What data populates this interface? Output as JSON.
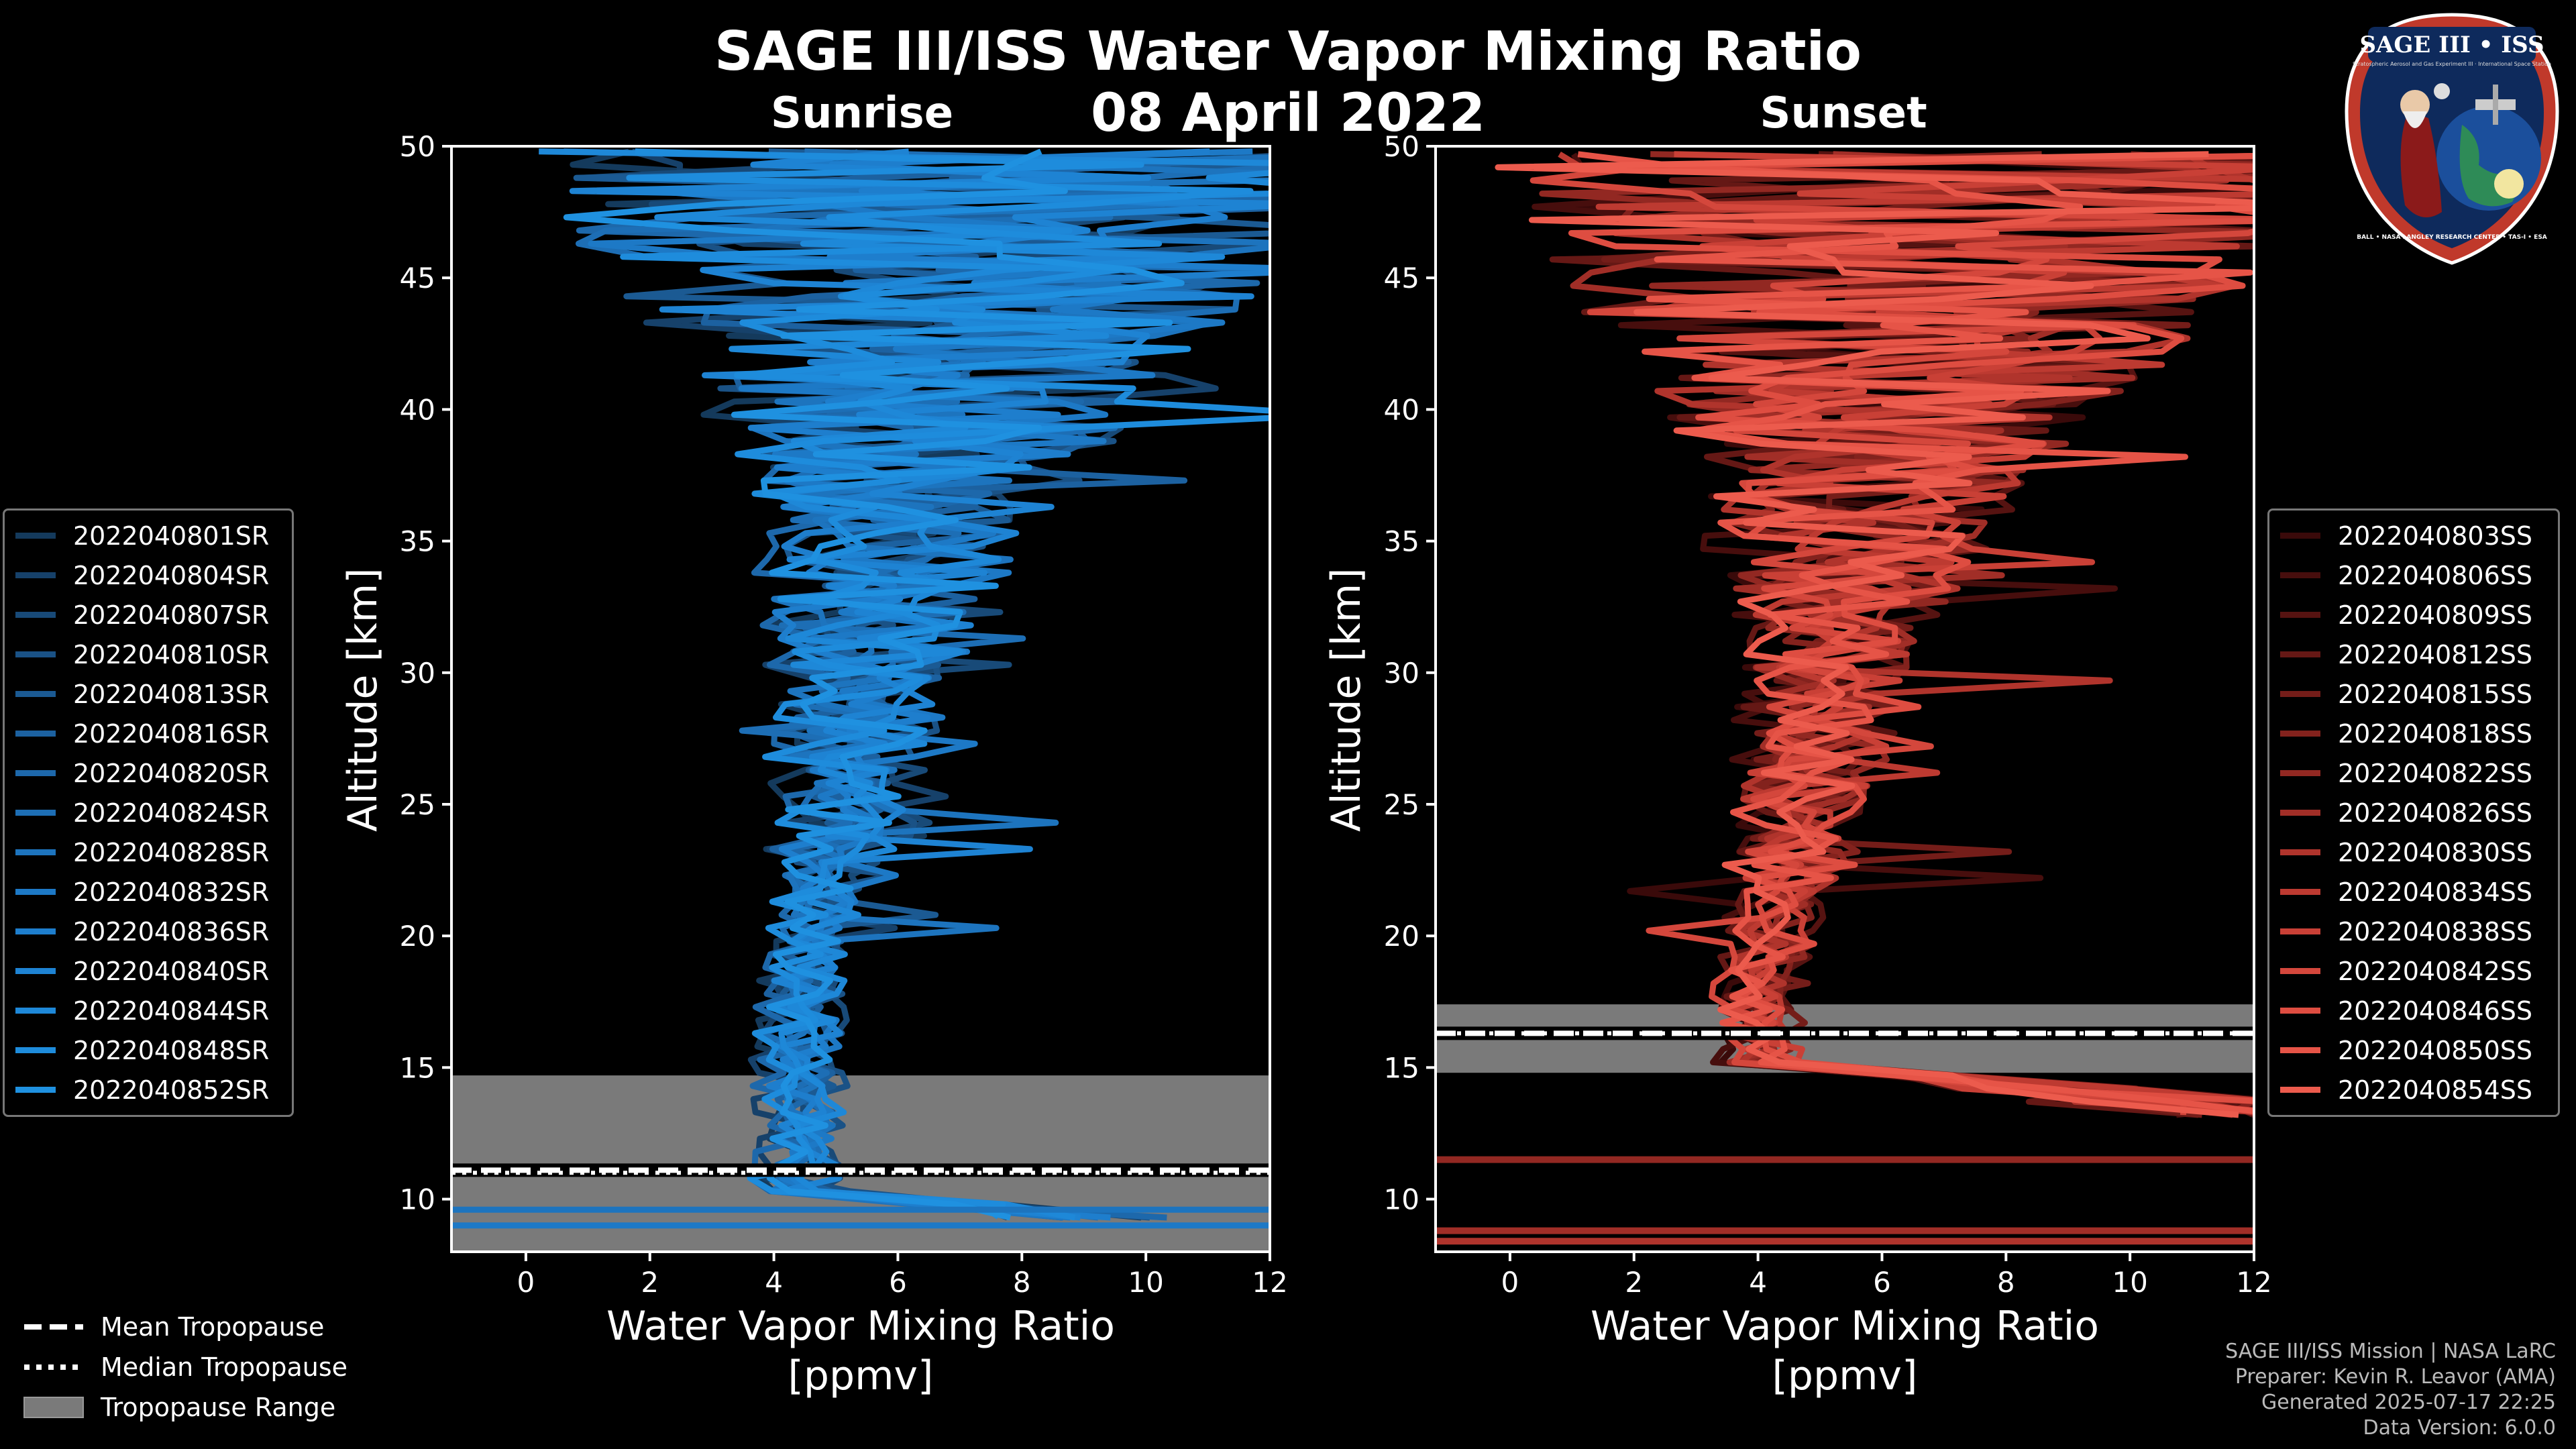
{
  "header": {
    "title": "SAGE III/ISS Water Vapor Mixing Ratio",
    "date": "08 April 2022"
  },
  "logo": {
    "text": "SAGE III • ISS",
    "subtitle": "Stratospheric Aerosol and Gas Experiment III · International Space Station",
    "ring_text": "BALL • NASA LANGLEY RESEARCH CENTER • TAS-I • ESA"
  },
  "colors": {
    "background": "#000000",
    "sunrise_accent": "#1f8fd6",
    "sunset_accent": "#e8574a",
    "tropopause_band": "#7a7a7a"
  },
  "chart_data": [
    {
      "type": "line",
      "panel": "Sunrise",
      "title": "Sunrise",
      "xlabel": "Water Vapor Mixing Ratio\n[ppmv]",
      "ylabel": "Altitude [km]",
      "xlim": [
        -1.2,
        12
      ],
      "ylim": [
        8,
        50
      ],
      "xticks": [
        0,
        2,
        4,
        6,
        8,
        10,
        12
      ],
      "yticks": [
        10,
        15,
        20,
        25,
        30,
        35,
        40,
        45,
        50
      ],
      "tropopause": {
        "mean": 11.1,
        "median": 11.0,
        "range": [
          8.0,
          14.7
        ]
      },
      "series": [
        {
          "name": "2022040801SR",
          "color": "#143a5c"
        },
        {
          "name": "2022040804SR",
          "color": "#16416a"
        },
        {
          "name": "2022040807SR",
          "color": "#184a78"
        },
        {
          "name": "2022040810SR",
          "color": "#1a5286"
        },
        {
          "name": "2022040813SR",
          "color": "#1b5a93"
        },
        {
          "name": "2022040816SR",
          "color": "#1c61a0"
        },
        {
          "name": "2022040820SR",
          "color": "#1d68ab"
        },
        {
          "name": "2022040824SR",
          "color": "#1d6eb5"
        },
        {
          "name": "2022040828SR",
          "color": "#1d74be"
        },
        {
          "name": "2022040832SR",
          "color": "#1d79c6"
        },
        {
          "name": "2022040836SR",
          "color": "#1e7ecd"
        },
        {
          "name": "2022040840SR",
          "color": "#1e83d3"
        },
        {
          "name": "2022040844SR",
          "color": "#1e88d8"
        },
        {
          "name": "2022040848SR",
          "color": "#1e8cdc"
        },
        {
          "name": "2022040852SR",
          "color": "#1f91e0"
        }
      ]
    },
    {
      "type": "line",
      "panel": "Sunset",
      "title": "Sunset",
      "xlabel": "Water Vapor Mixing Ratio\n[ppmv]",
      "ylabel": "Altitude [km]",
      "xlim": [
        -1.2,
        12
      ],
      "ylim": [
        8,
        50
      ],
      "xticks": [
        0,
        2,
        4,
        6,
        8,
        10,
        12
      ],
      "yticks": [
        10,
        15,
        20,
        25,
        30,
        35,
        40,
        45,
        50
      ],
      "tropopause": {
        "mean": 16.3,
        "median": 16.3,
        "range": [
          14.8,
          17.4
        ]
      },
      "series": [
        {
          "name": "2022040803SS",
          "color": "#3a0a0a"
        },
        {
          "name": "2022040806SS",
          "color": "#470e0d"
        },
        {
          "name": "2022040809SS",
          "color": "#561311"
        },
        {
          "name": "2022040812SS",
          "color": "#651815"
        },
        {
          "name": "2022040815SS",
          "color": "#741d19"
        },
        {
          "name": "2022040818SS",
          "color": "#83221d"
        },
        {
          "name": "2022040822SS",
          "color": "#922822"
        },
        {
          "name": "2022040826SS",
          "color": "#a12e27"
        },
        {
          "name": "2022040830SS",
          "color": "#b0342c"
        },
        {
          "name": "2022040834SS",
          "color": "#bd3a31"
        },
        {
          "name": "2022040838SS",
          "color": "#c94036"
        },
        {
          "name": "2022040842SS",
          "color": "#d4473c"
        },
        {
          "name": "2022040846SS",
          "color": "#de4d41"
        },
        {
          "name": "2022040850SS",
          "color": "#e65447"
        },
        {
          "name": "2022040854SS",
          "color": "#ec5b4d"
        }
      ]
    }
  ],
  "tropopause_legend": {
    "mean": "Mean Tropopause",
    "median": "Median Tropopause",
    "range": "Tropopause Range"
  },
  "footer": {
    "line1": "SAGE III/ISS Mission | NASA LaRC",
    "line2": "Preparer: Kevin R. Leavor (AMA)",
    "line3": "Generated 2025-07-17 22:25",
    "line4": "Data Version: 6.0.0"
  }
}
